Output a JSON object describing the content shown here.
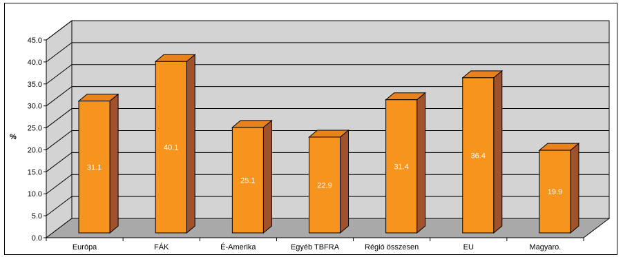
{
  "chart_data": {
    "type": "bar",
    "ylabel": "%",
    "ylim": [
      0,
      45
    ],
    "ytick_labels": [
      "0.0",
      "5.0",
      "10.0",
      "15.0",
      "20.0",
      "25.0",
      "30.0",
      "35.0",
      "40.0",
      "45.0"
    ],
    "categories": [
      "Európa",
      "FÁK",
      "É-Amerika",
      "Egyéb TBFRA",
      "Régió összesen",
      "EU",
      "Magyaro."
    ],
    "values": [
      31.1,
      40.1,
      25.1,
      22.9,
      31.4,
      36.4,
      19.9
    ],
    "value_labels": [
      "31.1",
      "40.1",
      "25.1",
      "22.9",
      "31.4",
      "36.4",
      "19.9"
    ],
    "style": "3d",
    "grid": true,
    "colors": {
      "bar_front": "#F7941D",
      "bar_top": "#E8821C",
      "bar_side": "#A0522D",
      "wall": "#D3D3D3",
      "floor": "#A9A9A9"
    }
  }
}
